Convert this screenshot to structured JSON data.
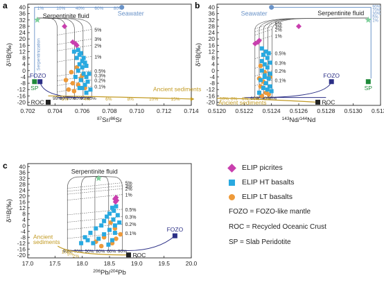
{
  "colors": {
    "picrite": "#c93fae",
    "ht": "#29a9e0",
    "lt": "#ee9a3a",
    "seawater": "#6a93c8",
    "serp_fluid": "#7fcf9b",
    "sed": "#c29a22",
    "fozo": "#2b2f86",
    "sp": "#1f8a3a",
    "roc": "#222222",
    "grid": "#555555"
  },
  "legend": [
    {
      "marker": "diamond",
      "color": "#c93fae",
      "label": "ELIP picrites"
    },
    {
      "marker": "square",
      "color": "#29a9e0",
      "label": "ELIP HT basalts"
    },
    {
      "marker": "circle",
      "color": "#ee9a3a",
      "label": "ELIP LT basalts"
    }
  ],
  "notes": [
    "FOZO = FOZO-like mantle",
    "ROC = Recycled Oceanic Crust",
    "SP = Slab Peridotite"
  ],
  "chart_data": [
    {
      "panel": "a",
      "type": "scatter",
      "xlabel_sup": "87",
      "xlabel_a": "Sr/",
      "xlabel_sup2": "86",
      "xlabel_b": "Sr",
      "ylabel": "δ¹¹B(‰)",
      "xlim": [
        0.702,
        0.714
      ],
      "ylim": [
        -22,
        42
      ],
      "xticks": [
        "0.702",
        "0.704",
        "0.706",
        "0.708",
        "0.710",
        "0.712",
        "0.714"
      ],
      "xtickvals": [
        0.702,
        0.704,
        0.706,
        0.708,
        0.71,
        0.712,
        0.714
      ],
      "yticks": [
        -20,
        -16,
        -12,
        -8,
        -4,
        0,
        4,
        8,
        12,
        16,
        20,
        24,
        28,
        32,
        36,
        40
      ],
      "endmembers": [
        {
          "name": "Seawater",
          "x": 0.7089,
          "y": 40
        },
        {
          "name": "Serpentinite fluid",
          "x": 0.7027,
          "y": 32
        },
        {
          "name": "FOZO",
          "x": 0.7029,
          "y": -7
        },
        {
          "name": "SP",
          "x": 0.7025,
          "y": -7
        },
        {
          "name": "ROC",
          "x": 0.7035,
          "y": -20
        }
      ],
      "labels": {
        "seawater": "Seawater",
        "serp": "Serpentinite fluid",
        "serpentinization": "Serpentinization",
        "fozo": "FOZO",
        "sp": "SP",
        "roc": "ROC",
        "sed": "Ancient sediments"
      },
      "mix_pct_right": [
        "5%",
        "3%",
        "2%",
        "1%",
        "0.5%",
        "0.3%",
        "0.2%",
        "0.1%"
      ],
      "mix_pct_right_y": [
        26,
        20,
        16,
        9,
        0,
        -3,
        -6,
        -10
      ],
      "sed_pct": [
        "2%",
        "4%",
        "6%",
        "8%",
        "10%",
        "15%"
      ],
      "top_pct": [
        "1%",
        "10%",
        "40%",
        "60%",
        "80%"
      ],
      "bottom_pct": [
        "95%",
        "90%",
        "70%",
        "60%",
        "90%",
        "80%"
      ],
      "picrites": [
        [
          0.7047,
          28
        ],
        [
          0.7053,
          18
        ],
        [
          0.7055,
          17
        ],
        [
          0.7056,
          16
        ]
      ],
      "ht": [
        [
          0.7054,
          12
        ],
        [
          0.7057,
          13
        ],
        [
          0.7058,
          10
        ],
        [
          0.7059,
          11
        ],
        [
          0.7061,
          8
        ],
        [
          0.7056,
          8
        ],
        [
          0.706,
          6
        ],
        [
          0.7062,
          5
        ],
        [
          0.7058,
          4
        ],
        [
          0.7063,
          3
        ],
        [
          0.706,
          2
        ],
        [
          0.7057,
          0
        ],
        [
          0.7061,
          -2
        ],
        [
          0.7063,
          -4
        ],
        [
          0.7055,
          -4
        ],
        [
          0.7059,
          -6
        ],
        [
          0.7064,
          -7
        ],
        [
          0.7062,
          -9
        ],
        [
          0.706,
          -11
        ],
        [
          0.7066,
          -12
        ],
        [
          0.7058,
          -11
        ],
        [
          0.7063,
          -14
        ],
        [
          0.7065,
          -2
        ]
      ],
      "lt": [
        [
          0.7056,
          2
        ],
        [
          0.7052,
          -1
        ],
        [
          0.706,
          -3
        ],
        [
          0.7048,
          -6
        ],
        [
          0.7053,
          -8
        ],
        [
          0.7057,
          -9
        ],
        [
          0.705,
          -12
        ],
        [
          0.7054,
          -13
        ],
        [
          0.7059,
          -5
        ],
        [
          0.7062,
          -11
        ]
      ]
    },
    {
      "panel": "b",
      "type": "scatter",
      "xlabel_sup": "143",
      "xlabel_a": "Nd/",
      "xlabel_sup2": "144",
      "xlabel_b": "Nd",
      "ylabel": "δ¹¹B(‰)",
      "xlim": [
        0.512,
        0.5132
      ],
      "ylim": [
        -22,
        42
      ],
      "xticks": [
        "0.5120",
        "0.5122",
        "0.5124",
        "0.5126",
        "0.5128",
        "0.5130",
        "0.5132"
      ],
      "xtickvals": [
        0.512,
        0.5122,
        0.5124,
        0.5126,
        0.5128,
        0.513,
        0.5132
      ],
      "yticks": [
        -20,
        -16,
        -12,
        -8,
        -4,
        0,
        4,
        8,
        12,
        16,
        20,
        24,
        28,
        32,
        36,
        40
      ],
      "endmembers": [
        {
          "name": "Seawater",
          "x": 0.5124,
          "y": 40
        },
        {
          "name": "Serpentinite fluid",
          "x": 0.51311,
          "y": 32
        },
        {
          "name": "FOZO",
          "x": 0.51284,
          "y": -7
        },
        {
          "name": "SP",
          "x": 0.51311,
          "y": -7
        },
        {
          "name": "ROC",
          "x": 0.51274,
          "y": -20
        }
      ],
      "labels": {
        "seawater": "Seawater",
        "serp": "Serpentinite fluid",
        "fozo": "FOZO",
        "sp": "SP",
        "roc": "ROC",
        "sed": "Ancient sediments"
      },
      "mix_pct_right": [
        "5%",
        "3%",
        "2%",
        "1%",
        "0.5%",
        "0.3%",
        "0.2%",
        "0.1%"
      ],
      "mix_pct_right_y": [
        30,
        28,
        26,
        22,
        11,
        5,
        0,
        -6
      ],
      "sed_pct": [
        "10%",
        "8%",
        "6%",
        "4%",
        "2%"
      ],
      "top_pct": [
        "90%",
        "70%",
        "30%",
        "5%",
        "1%"
      ],
      "bottom_pct": [
        "60%",
        "80%",
        "90%",
        "95%"
      ],
      "picrites": [
        [
          0.51228,
          17
        ],
        [
          0.5123,
          18
        ],
        [
          0.51231,
          19
        ],
        [
          0.5126,
          28
        ]
      ],
      "ht": [
        [
          0.51233,
          14
        ],
        [
          0.51236,
          12
        ],
        [
          0.51234,
          10
        ],
        [
          0.51238,
          11
        ],
        [
          0.51237,
          8
        ],
        [
          0.51233,
          6
        ],
        [
          0.51239,
          5
        ],
        [
          0.51235,
          4
        ],
        [
          0.51237,
          2
        ],
        [
          0.51233,
          0
        ],
        [
          0.51239,
          -2
        ],
        [
          0.51235,
          -3
        ],
        [
          0.51238,
          -5
        ],
        [
          0.51232,
          -6
        ],
        [
          0.51236,
          -8
        ],
        [
          0.51239,
          -10
        ],
        [
          0.51234,
          -11
        ],
        [
          0.51237,
          -12
        ],
        [
          0.5124,
          -13
        ],
        [
          0.51231,
          -14
        ],
        [
          0.51235,
          -4
        ]
      ],
      "lt": [
        [
          0.51232,
          3
        ],
        [
          0.51235,
          -1
        ],
        [
          0.51231,
          -5
        ],
        [
          0.51234,
          -7
        ],
        [
          0.51232,
          -10
        ],
        [
          0.51236,
          -14
        ],
        [
          0.51238,
          -15
        ],
        [
          0.51233,
          -16
        ],
        [
          0.51239,
          -4
        ]
      ]
    },
    {
      "panel": "c",
      "type": "scatter",
      "xlabel_sup": "206",
      "xlabel_a": "Pb/",
      "xlabel_sup2": "204",
      "xlabel_b": "Pb",
      "ylabel": "δ¹¹B(‰)",
      "xlim": [
        17.0,
        20.0
      ],
      "ylim": [
        -22,
        42
      ],
      "xticks": [
        "17.0",
        "17.5",
        "18.0",
        "18.5",
        "19.0",
        "19.5",
        "20.0"
      ],
      "xtickvals": [
        17.0,
        17.5,
        18.0,
        18.5,
        19.0,
        19.5,
        20.0
      ],
      "yticks": [
        -20,
        -16,
        -12,
        -8,
        -4,
        0,
        4,
        8,
        12,
        16,
        20,
        24,
        28,
        32,
        36,
        40
      ],
      "endmembers": [
        {
          "name": "Serpentinite fluid",
          "x": 18.3,
          "y": 32
        },
        {
          "name": "FOZO",
          "x": 19.7,
          "y": -7
        },
        {
          "name": "Ancient sediments",
          "x": 17.55,
          "y": -14
        },
        {
          "name": "ROC",
          "x": 18.85,
          "y": -20
        }
      ],
      "labels": {
        "serp": "Serpentinite fluid",
        "fozo": "FOZO",
        "roc": "ROC",
        "sed": "Ancient sediments"
      },
      "mix_pct_right": [
        "5%",
        "3%",
        "2%",
        "1%",
        "0.5%",
        "0.3%",
        "0.2%",
        "0.1%"
      ],
      "mix_pct_right_y": [
        29,
        27,
        25,
        21,
        11,
        6,
        1,
        -5
      ],
      "sed_pct": [
        "10%",
        "5%",
        "2%"
      ],
      "top_pct": [],
      "bottom_pct": [
        "90%",
        "70%",
        "50%",
        "80%",
        "60%",
        "90%"
      ],
      "picrites": [
        [
          18.62,
          19
        ],
        [
          18.63,
          17
        ],
        [
          18.61,
          16
        ],
        [
          18.6,
          18
        ]
      ],
      "ht": [
        [
          18.55,
          12
        ],
        [
          18.58,
          10
        ],
        [
          18.62,
          13
        ],
        [
          18.5,
          8
        ],
        [
          18.65,
          7
        ],
        [
          18.45,
          6
        ],
        [
          18.57,
          4
        ],
        [
          18.4,
          3
        ],
        [
          18.68,
          2
        ],
        [
          18.35,
          0
        ],
        [
          18.6,
          0
        ],
        [
          18.25,
          -2
        ],
        [
          18.5,
          -3
        ],
        [
          18.15,
          -5
        ],
        [
          18.4,
          -6
        ],
        [
          18.05,
          -8
        ],
        [
          18.3,
          -9
        ],
        [
          18.55,
          -10
        ],
        [
          17.98,
          -12
        ],
        [
          18.2,
          -12
        ],
        [
          18.48,
          -13
        ],
        [
          18.6,
          -5
        ],
        [
          18.1,
          -10
        ]
      ],
      "lt": [
        [
          18.52,
          2
        ],
        [
          18.6,
          -2
        ],
        [
          18.7,
          -6
        ],
        [
          18.4,
          -8
        ],
        [
          18.25,
          -11
        ],
        [
          18.55,
          -12
        ],
        [
          18.35,
          -14
        ],
        [
          18.62,
          -9
        ]
      ]
    }
  ]
}
